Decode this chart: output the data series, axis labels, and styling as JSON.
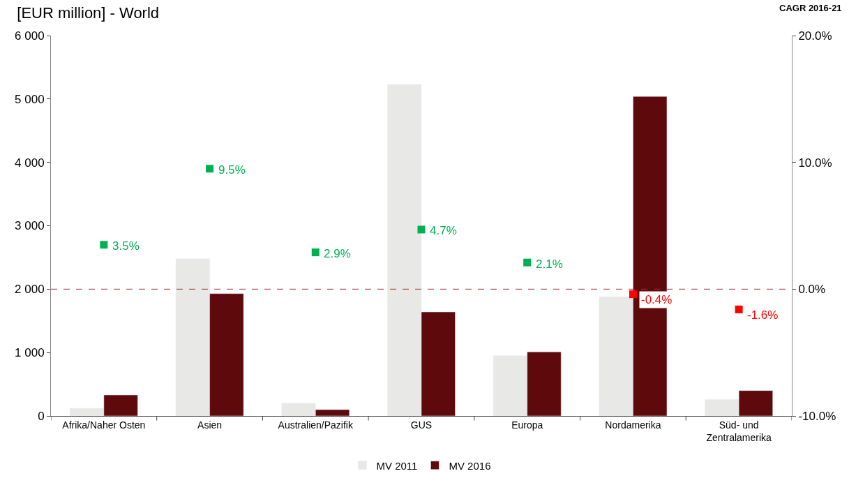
{
  "chart_data": {
    "type": "bar",
    "title": "[EUR million] - World",
    "y2label": "CAGR 2016-21",
    "categories": [
      "Afrika/Naher Osten",
      "Asien",
      "Australien/Pazifik",
      "GUS",
      "Europa",
      "Nordamerika",
      "Süd- und\nZentralamerika"
    ],
    "series": [
      {
        "name": "MV 2011",
        "color": "#e8e8e6",
        "values": [
          120,
          2480,
          200,
          5230,
          950,
          1880,
          260
        ]
      },
      {
        "name": "MV 2016",
        "color": "#5e0a0c",
        "values": [
          330,
          1930,
          100,
          1640,
          1010,
          5040,
          400
        ]
      },
      {
        "type": "scatter",
        "axis": "y2",
        "marker": "square",
        "colors": [
          "#00b050",
          "#00b050",
          "#00b050",
          "#00b050",
          "#00b050",
          "#ff0000",
          "#ff0000"
        ],
        "values": [
          3.5,
          9.5,
          2.9,
          4.7,
          2.1,
          -0.4,
          -1.6
        ],
        "value_labels": [
          "3.5%",
          "9.5%",
          "2.9%",
          "4.7%",
          "2.1%",
          "-0.4%",
          "-1.6%"
        ]
      }
    ],
    "ylim": [
      0,
      6000
    ],
    "yticks": [
      {
        "value": 0,
        "label": "0"
      },
      {
        "value": 1000,
        "label": "1 000"
      },
      {
        "value": 2000,
        "label": "2 000"
      },
      {
        "value": 3000,
        "label": "3 000"
      },
      {
        "value": 4000,
        "label": "4 000"
      },
      {
        "value": 5000,
        "label": "5 000"
      },
      {
        "value": 6000,
        "label": "6 000"
      }
    ],
    "y2lim": [
      -10,
      20
    ],
    "y2ticks": [
      {
        "value": -10,
        "label": "-10.0%"
      },
      {
        "value": 0,
        "label": "0.0%"
      },
      {
        "value": 10,
        "label": "10.0%"
      },
      {
        "value": 20,
        "label": "20.0%"
      }
    ],
    "ref_lines": [
      {
        "axis": "y2",
        "value": 0,
        "label": null,
        "color": "#a52a2a",
        "line_style": "dashed"
      }
    ],
    "legend": "bottom"
  }
}
